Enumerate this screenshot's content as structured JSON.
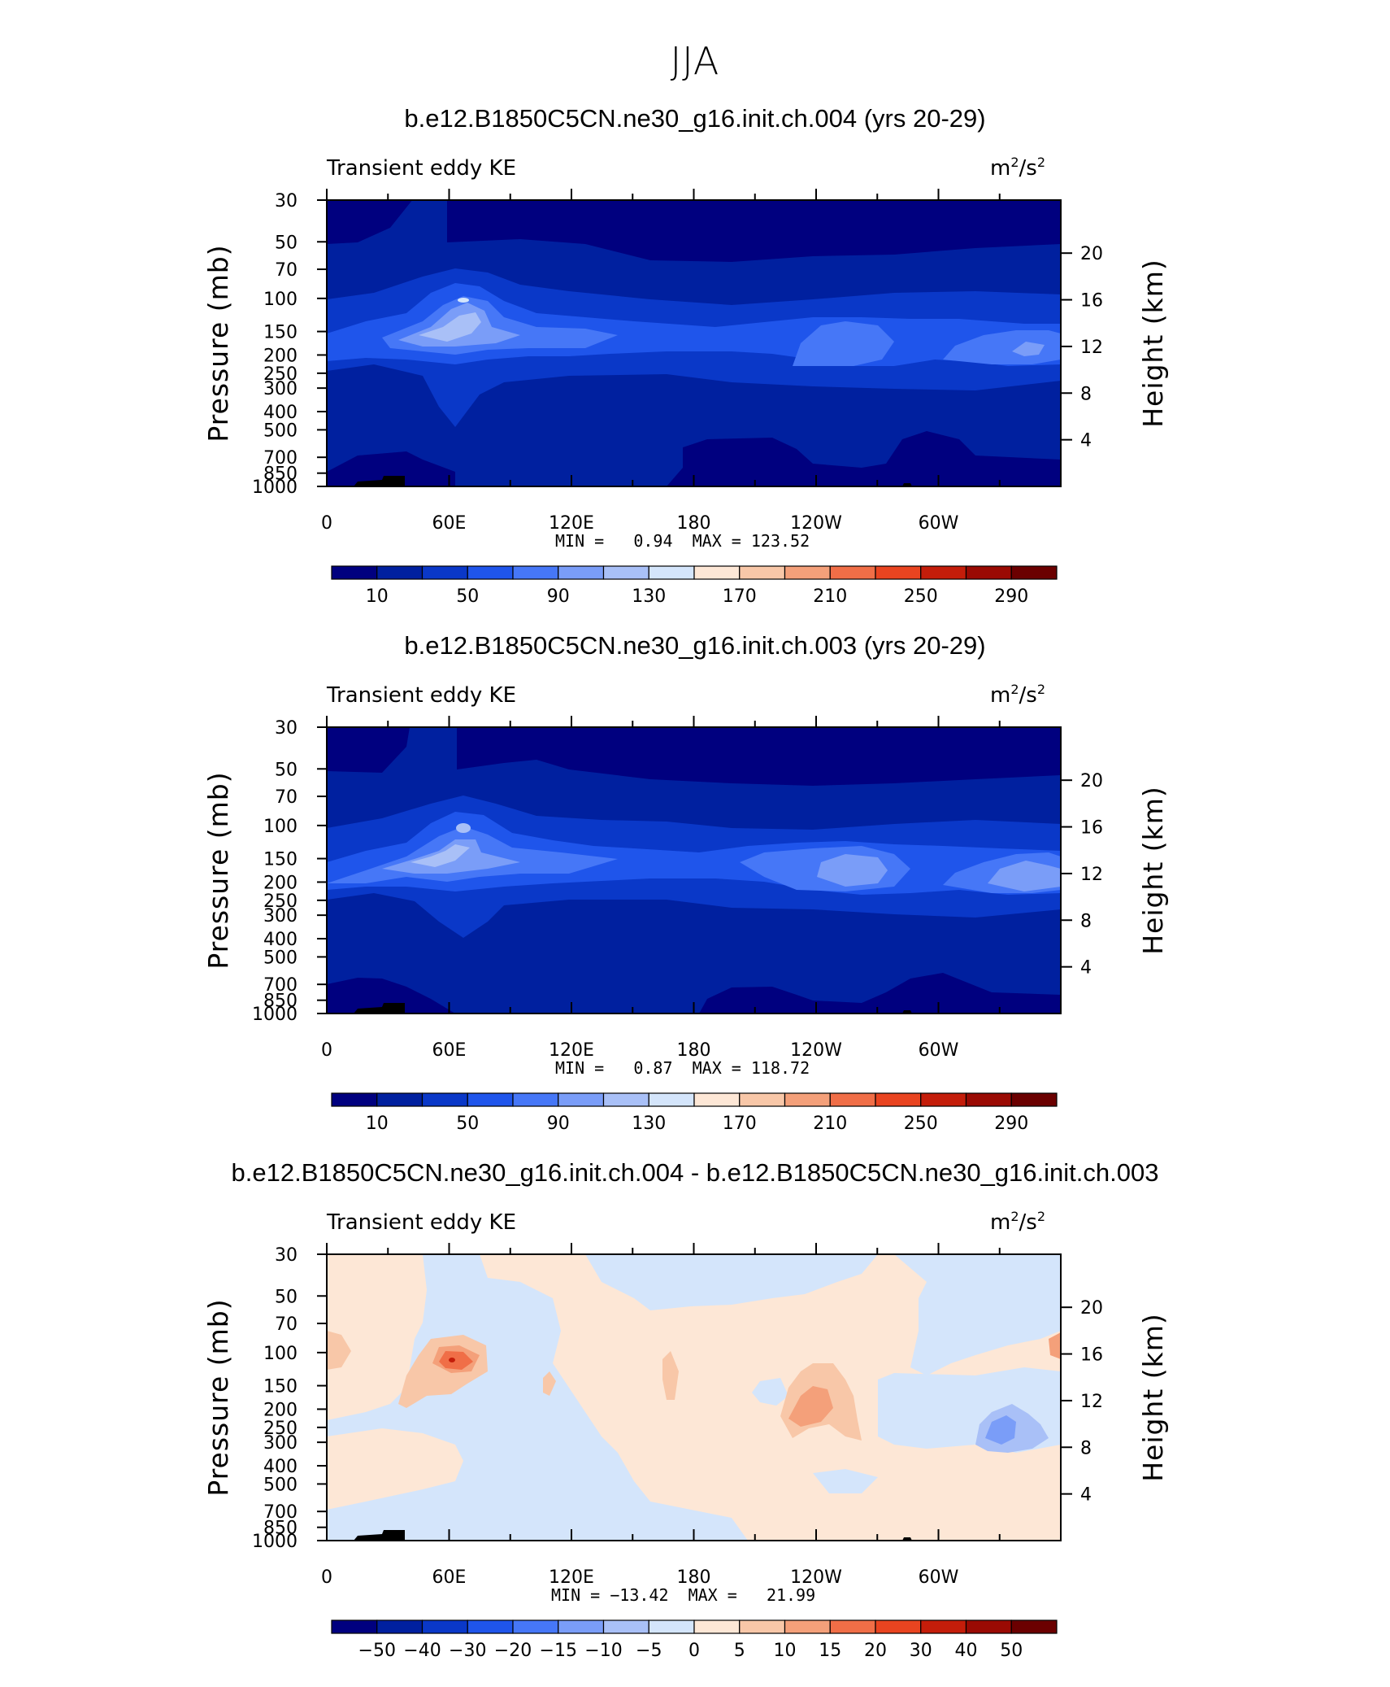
{
  "page": {
    "title": "JJA"
  },
  "chart_data": [
    {
      "type": "heatmap",
      "title": "b.e12.B1850C5CN.ne30_g16.init.ch.004 (yrs 20-29)",
      "left_label": "Transient eddy KE",
      "units_base": "m",
      "units_mid": "/s",
      "units_exp": "2",
      "ylabel": "Pressure  (mb)",
      "y2label": "Height  (km)",
      "x_ticks": [
        "0",
        "60E",
        "120E",
        "180",
        "120W",
        "60W"
      ],
      "y_ticks": [
        "30",
        "50",
        "70",
        "100",
        "150",
        "200",
        "250",
        "300",
        "400",
        "500",
        "700",
        "850",
        "1000"
      ],
      "y2_ticks": [
        "20",
        "16",
        "12",
        "8",
        "4"
      ],
      "min_label": "MIN = ",
      "min": "0.94",
      "max_label": "MAX = ",
      "max": "123.52",
      "colorbar_labels": [
        "10",
        "50",
        "90",
        "130",
        "170",
        "210",
        "250",
        "290"
      ]
    },
    {
      "type": "heatmap",
      "title": "b.e12.B1850C5CN.ne30_g16.init.ch.003 (yrs 20-29)",
      "left_label": "Transient eddy KE",
      "units_base": "m",
      "units_mid": "/s",
      "units_exp": "2",
      "ylabel": "Pressure  (mb)",
      "y2label": "Height  (km)",
      "x_ticks": [
        "0",
        "60E",
        "120E",
        "180",
        "120W",
        "60W"
      ],
      "y_ticks": [
        "30",
        "50",
        "70",
        "100",
        "150",
        "200",
        "250",
        "300",
        "400",
        "500",
        "700",
        "850",
        "1000"
      ],
      "y2_ticks": [
        "20",
        "16",
        "12",
        "8",
        "4"
      ],
      "min_label": "MIN = ",
      "min": "0.87",
      "max_label": "MAX = ",
      "max": "118.72",
      "colorbar_labels": [
        "10",
        "50",
        "90",
        "130",
        "170",
        "210",
        "250",
        "290"
      ]
    },
    {
      "type": "heatmap",
      "title": "b.e12.B1850C5CN.ne30_g16.init.ch.004 - b.e12.B1850C5CN.ne30_g16.init.ch.003",
      "left_label": "Transient eddy KE",
      "units_base": "m",
      "units_mid": "/s",
      "units_exp": "2",
      "ylabel": "Pressure  (mb)",
      "y2label": "Height  (km)",
      "x_ticks": [
        "0",
        "60E",
        "120E",
        "180",
        "120W",
        "60W"
      ],
      "y_ticks": [
        "30",
        "50",
        "70",
        "100",
        "150",
        "200",
        "250",
        "300",
        "400",
        "500",
        "700",
        "850",
        "1000"
      ],
      "y2_ticks": [
        "20",
        "16",
        "12",
        "8",
        "4"
      ],
      "min_label": "MIN = ",
      "min": "−13.42",
      "max_label": "MAX = ",
      "max": "21.99",
      "colorbar_labels": [
        "−50",
        "−40",
        "−30",
        "−20",
        "−15",
        "−10",
        "−5",
        "0",
        "5",
        "10",
        "15",
        "20",
        "30",
        "40",
        "50"
      ]
    }
  ],
  "colors": {
    "scale": [
      "#00007f",
      "#00209f",
      "#0a38c8",
      "#1f55eb",
      "#4677f7",
      "#7a9df8",
      "#a9c0f7",
      "#d4e5fb",
      "#fde7d6",
      "#f8c7a8",
      "#f4a07a",
      "#f06e47",
      "#e94420",
      "#c41d0a",
      "#9a0a03",
      "#6b0000"
    ]
  }
}
